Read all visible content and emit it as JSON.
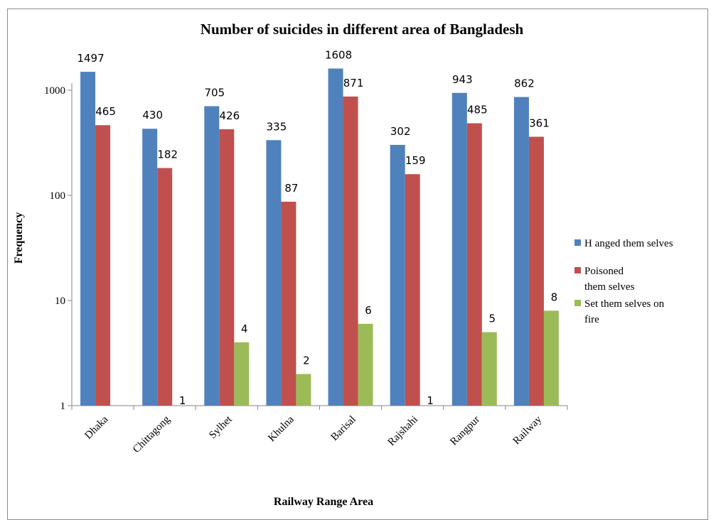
{
  "chart_data": {
    "type": "bar",
    "title": "Number of suicides in different area  of Bangladesh",
    "xlabel": "Railway Range Area",
    "ylabel": "Frequency",
    "yscale": "log",
    "ylim": [
      1,
      10000
    ],
    "yticks": [
      "1",
      "10",
      "100",
      "1000"
    ],
    "grid": false,
    "legend_position": "right",
    "categories": [
      "Dhaka",
      "Chittagong",
      "Sylhet",
      "Khulna",
      "Barisal",
      "Rajshahi",
      "Rangpur",
      "Railway"
    ],
    "series": [
      {
        "name": "Hanged them selves",
        "color": "#4f81bd",
        "values": [
          1497,
          430,
          705,
          335,
          1608,
          302,
          943,
          862
        ]
      },
      {
        "name": "Poisoned them selves",
        "color": "#c0504d",
        "values": [
          465,
          182,
          426,
          87,
          871,
          159,
          485,
          361
        ]
      },
      {
        "name": "Set them selves on fire",
        "color": "#9bbb59",
        "values": [
          null,
          1,
          4,
          2,
          6,
          1,
          5,
          8
        ]
      }
    ],
    "legend": {
      "entries": [
        {
          "lines": [
            "H anged them selves"
          ]
        },
        {
          "lines": [
            "Poisoned",
            "them selves"
          ]
        },
        {
          "lines": [
            "Set them selves on",
            "fire"
          ]
        }
      ]
    }
  }
}
